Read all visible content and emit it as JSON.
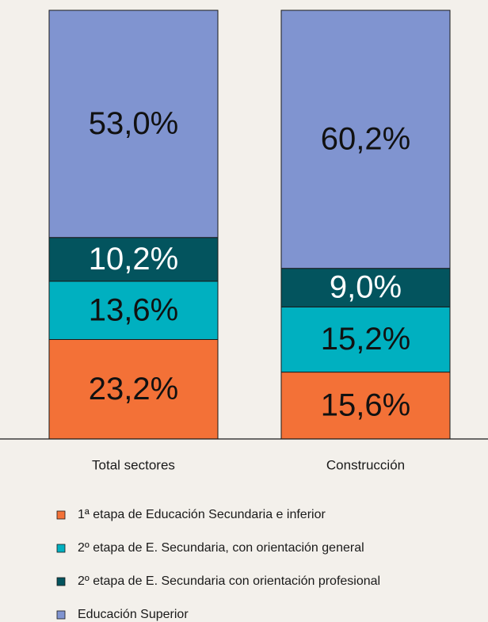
{
  "chart_data": {
    "type": "stacked_bar",
    "categories": [
      "Total sectores",
      "Construcción"
    ],
    "ylim": [
      0,
      100
    ],
    "series": [
      {
        "name": "1ª etapa de Educación Secundaria e inferior",
        "color": "#f37137",
        "values": [
          23.2,
          15.6
        ],
        "value_labels": [
          "23,2%",
          "15,6%"
        ]
      },
      {
        "name": "2º etapa de E. Secundaria, con orientación general",
        "color": "#00b0c0",
        "values": [
          13.6,
          15.2
        ],
        "value_labels": [
          "13,6%",
          "15,2%"
        ]
      },
      {
        "name": "2º etapa de E. Secundaria con orientación profesional",
        "color": "#03545e",
        "values": [
          10.2,
          9.0
        ],
        "value_labels": [
          "10,2%",
          "9,0%"
        ]
      },
      {
        "name": "Educación Superior",
        "color": "#8094d0",
        "values": [
          53.0,
          60.2
        ],
        "value_labels": [
          "53,0%",
          "60,2%"
        ]
      }
    ]
  }
}
